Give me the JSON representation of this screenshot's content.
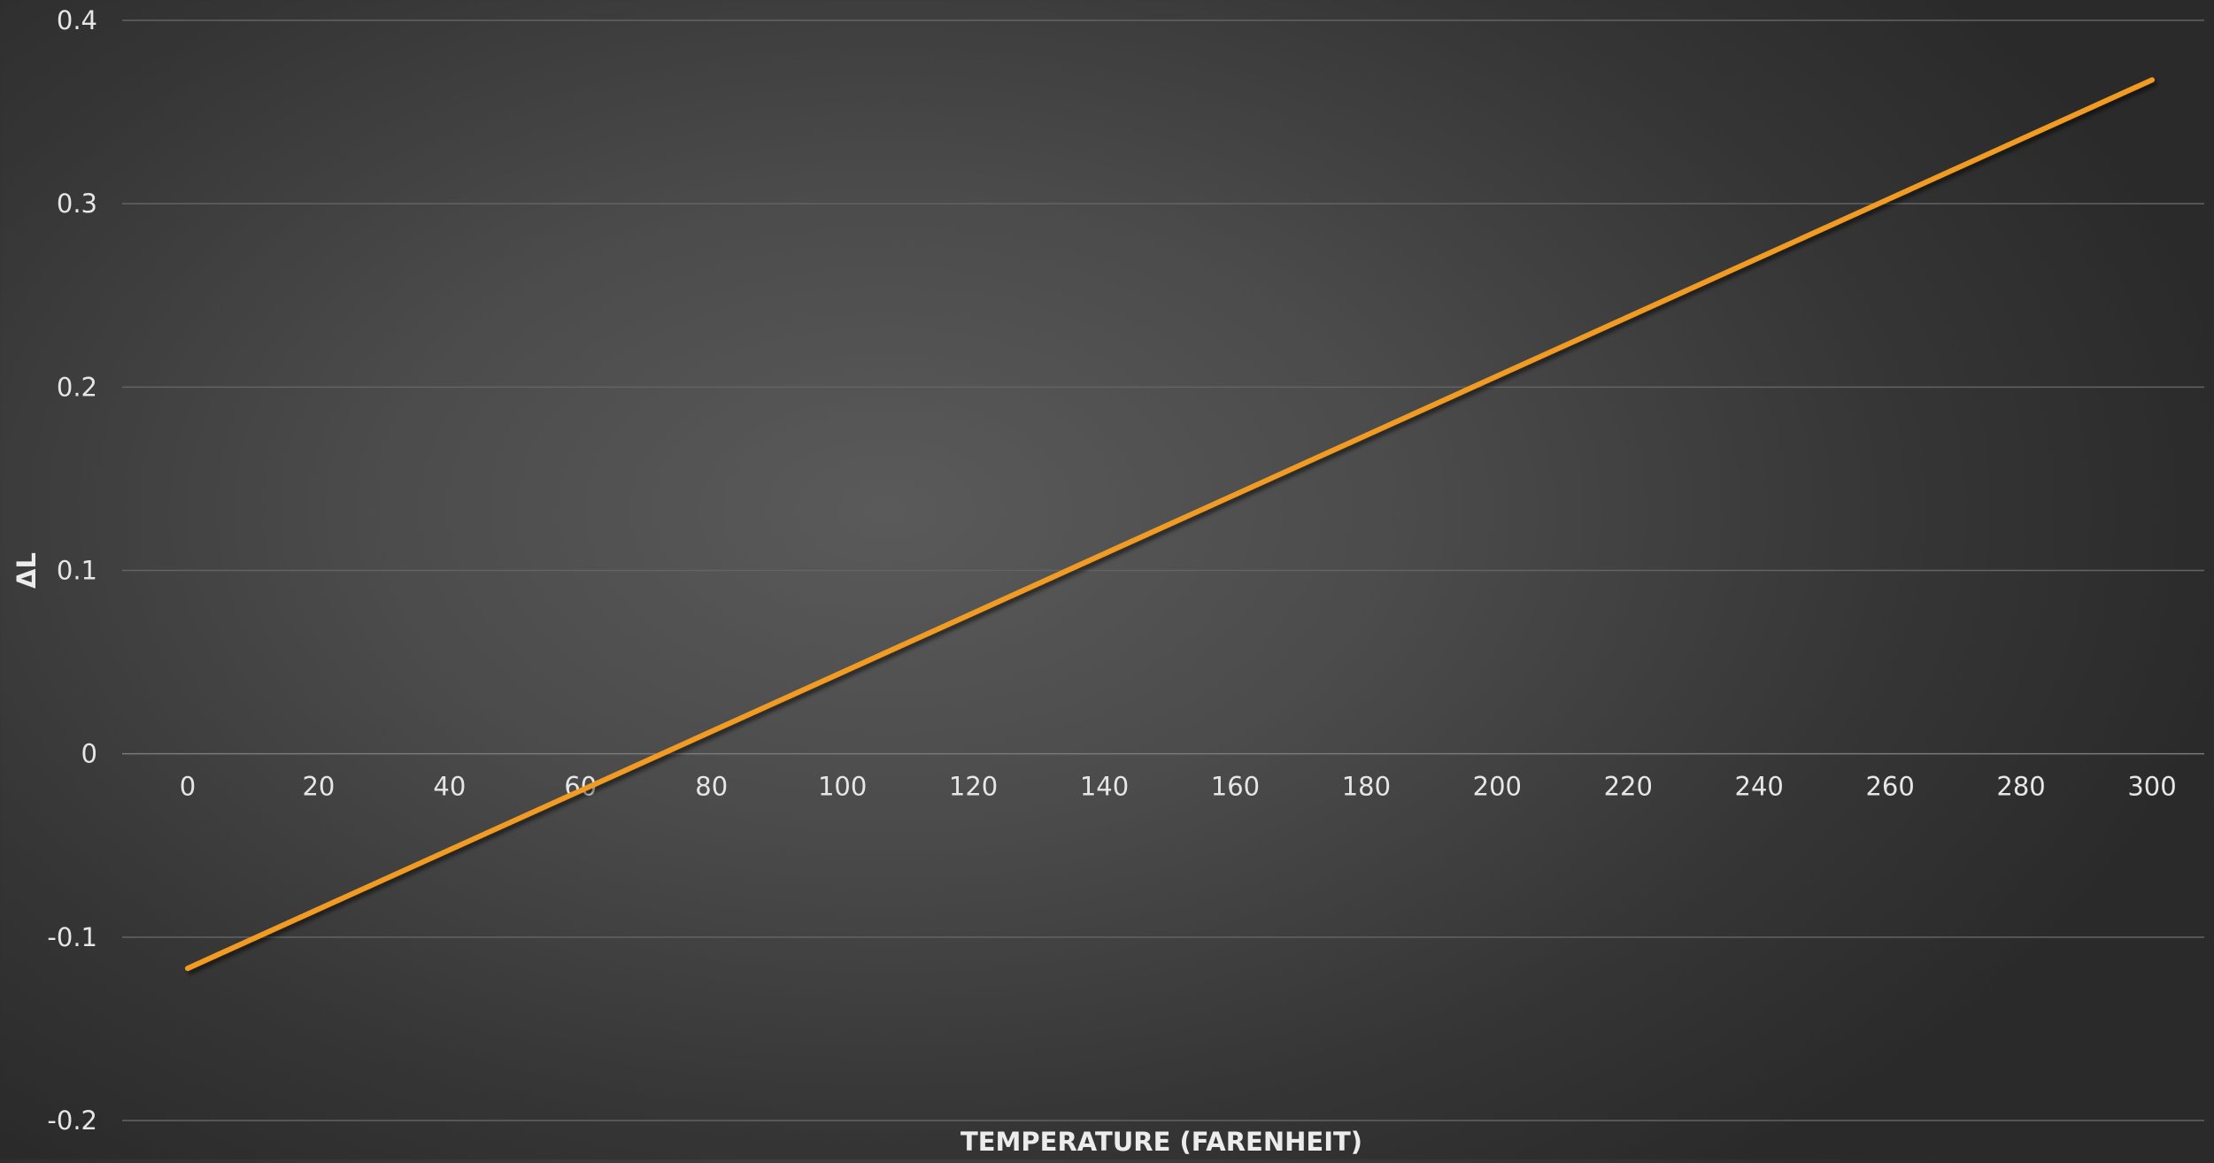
{
  "chart_data": {
    "type": "line",
    "title": "",
    "xlabel": "TEMPERATURE (FARENHEIT)",
    "ylabel": "ΔL",
    "xlim": [
      0,
      300
    ],
    "ylim": [
      -0.2,
      0.4
    ],
    "x_ticks": [
      0,
      20,
      40,
      60,
      80,
      100,
      120,
      140,
      160,
      180,
      200,
      220,
      240,
      260,
      280,
      300
    ],
    "x_tick_labels": [
      "0",
      "20",
      "40",
      "60",
      "80",
      "100",
      "120",
      "140",
      "160",
      "180",
      "200",
      "220",
      "240",
      "260",
      "280",
      "300"
    ],
    "y_ticks": [
      -0.2,
      -0.1,
      0,
      0.1,
      0.2,
      0.3,
      0.4
    ],
    "y_tick_labels": [
      "-0.2",
      "-0.1",
      "0",
      "0.1",
      "0.2",
      "0.3",
      "0.4"
    ],
    "grid": "horizontal",
    "legend": "none",
    "x_axis_position": "y=0",
    "series": [
      {
        "color": "#f29b20",
        "x": [
          0,
          20,
          40,
          60,
          80,
          100,
          120,
          140,
          160,
          180,
          200,
          220,
          240,
          260,
          280,
          300
        ],
        "values": [
          -0.117,
          -0.0847,
          -0.0524,
          -0.0201,
          0.0122,
          0.0445,
          0.0768,
          0.1091,
          0.1414,
          0.1737,
          0.206,
          0.2383,
          0.2706,
          0.3029,
          0.3352,
          0.3675
        ]
      }
    ]
  }
}
